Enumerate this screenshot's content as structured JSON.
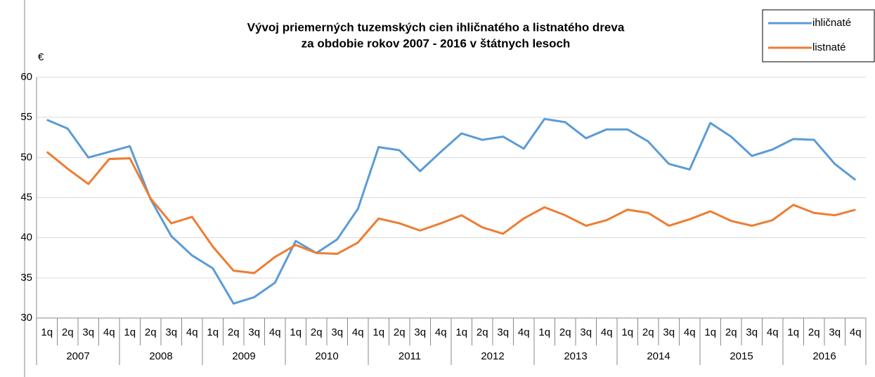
{
  "chart_data": {
    "type": "line",
    "title": [
      "Vývoj priemerných tuzemských cien ihličnatého a listnatého dreva",
      "za obdobie rokov 2007 - 2016 v štátnych lesoch"
    ],
    "ylabel": "€",
    "categories": [
      "1q",
      "2q",
      "3q",
      "4q",
      "1q",
      "2q",
      "3q",
      "4q",
      "1q",
      "2q",
      "3q",
      "4q",
      "1q",
      "2q",
      "3q",
      "4q",
      "1q",
      "2q",
      "3q",
      "4q",
      "1q",
      "2q",
      "3q",
      "4q",
      "1q",
      "2q",
      "3q",
      "4q",
      "1q",
      "2q",
      "3q",
      "4q",
      "1q",
      "2q",
      "3q",
      "4q",
      "1q",
      "2q",
      "3q",
      "4q"
    ],
    "years": [
      "2007",
      "2008",
      "2009",
      "2010",
      "2011",
      "2012",
      "2013",
      "2014",
      "2015",
      "2016"
    ],
    "series": [
      {
        "name": "ihličnaté",
        "color": "#5b9bd5",
        "values": [
          54.7,
          53.6,
          50.0,
          50.7,
          51.4,
          44.8,
          40.2,
          37.8,
          36.2,
          31.8,
          32.6,
          34.4,
          39.6,
          38.1,
          39.8,
          43.6,
          51.3,
          50.9,
          48.3,
          50.7,
          53.0,
          52.2,
          52.6,
          51.1,
          54.8,
          54.4,
          52.4,
          53.5,
          53.5,
          52.0,
          49.2,
          48.5,
          54.3,
          52.6,
          50.2,
          51.0,
          52.3,
          52.2,
          49.2,
          47.2
        ]
      },
      {
        "name": "listnaté",
        "color": "#ed7d31",
        "values": [
          50.7,
          48.6,
          46.7,
          49.8,
          49.9,
          44.9,
          41.8,
          42.6,
          38.9,
          35.9,
          35.6,
          37.6,
          39.1,
          38.1,
          38.0,
          39.4,
          42.4,
          41.8,
          40.9,
          41.8,
          42.8,
          41.3,
          40.5,
          42.4,
          43.8,
          42.8,
          41.5,
          42.2,
          43.5,
          43.1,
          41.5,
          42.3,
          43.3,
          42.1,
          41.5,
          42.2,
          44.1,
          43.1,
          42.8,
          43.5
        ]
      }
    ],
    "ylim": [
      30,
      60
    ],
    "yticks": [
      30,
      35,
      40,
      45,
      50,
      55,
      60
    ],
    "grid": true,
    "legend": "top-right"
  }
}
